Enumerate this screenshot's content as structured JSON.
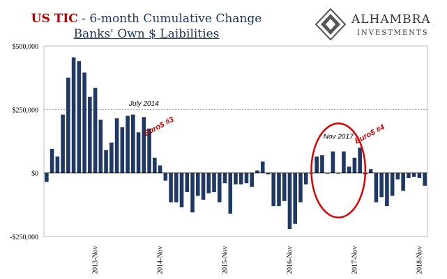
{
  "title": {
    "red": "US TIC",
    "rest": " - 6-month Cumulative Change",
    "line2": "Banks' Own $ Laibilities"
  },
  "logo": {
    "name": "ALHAMBRA",
    "sub": "INVESTMENTS"
  },
  "colors": {
    "bar": "#1f3864",
    "annotation_red": "#c00000",
    "title_blue": "#1f3864"
  },
  "chart_data": {
    "type": "bar",
    "ylim": [
      -250000,
      500000
    ],
    "yticks": [
      500000,
      250000,
      0,
      -250000
    ],
    "ytick_labels": [
      "$500,000",
      "$250,000",
      "$0",
      "-$250,000"
    ],
    "xtick_labels": [
      {
        "label": "2013-Nov",
        "index": 9
      },
      {
        "label": "2014-Nov",
        "index": 21
      },
      {
        "label": "2015-Nov",
        "index": 33
      },
      {
        "label": "2016-Nov",
        "index": 45
      },
      {
        "label": "2017-Nov",
        "index": 57
      },
      {
        "label": "2018-Nov",
        "index": 69
      }
    ],
    "reference_line": 250000,
    "values": [
      -35000,
      95000,
      65000,
      230000,
      375000,
      455000,
      440000,
      395000,
      300000,
      335000,
      210000,
      90000,
      120000,
      215000,
      180000,
      225000,
      230000,
      160000,
      220000,
      175000,
      60000,
      30000,
      -30000,
      -115000,
      -115000,
      -135000,
      -75000,
      -155000,
      -90000,
      -105000,
      -80000,
      -75000,
      -115000,
      -40000,
      -160000,
      -45000,
      -45000,
      -40000,
      -55000,
      10000,
      45000,
      -5000,
      -130000,
      -130000,
      -110000,
      -220000,
      -200000,
      -115000,
      -45000,
      0,
      65000,
      70000,
      0,
      85000,
      0,
      85000,
      25000,
      60000,
      100000,
      -5000,
      15000,
      -115000,
      -95000,
      -130000,
      -90000,
      -25000,
      -70000,
      -20000,
      -15000,
      -20000,
      -50000
    ],
    "annotations": [
      {
        "text": "July 2014",
        "color": "black",
        "index": 18,
        "y": 265000
      },
      {
        "text": "Euro$ #3",
        "color": "red",
        "index": 21,
        "y": 175000
      },
      {
        "text": "Nov 2017",
        "color": "black",
        "index": 54,
        "y": 135000
      },
      {
        "text": "Euro$ #4",
        "color": "red",
        "index": 60,
        "y": 145000
      }
    ],
    "ellipse": {
      "center_index": 54,
      "center_y": 10000,
      "rx_bars": 5,
      "ry_value": 185000
    }
  }
}
